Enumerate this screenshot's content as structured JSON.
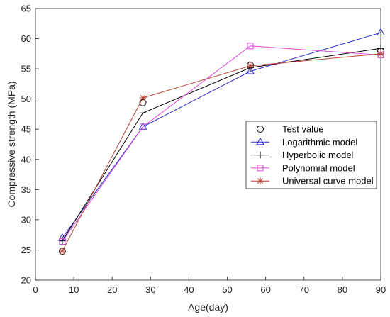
{
  "chart_data": {
    "type": "line",
    "title": "",
    "xlabel": "Age(day)",
    "ylabel": "Compressive strength (MPa)",
    "xlim": [
      0,
      90
    ],
    "ylim": [
      20,
      65
    ],
    "xticks": [
      0,
      10,
      20,
      30,
      40,
      50,
      60,
      70,
      80,
      90
    ],
    "yticks": [
      20,
      25,
      30,
      35,
      40,
      45,
      50,
      55,
      60,
      65
    ],
    "x": [
      7,
      28,
      56,
      90
    ],
    "grid": false,
    "legend_position": "right-center",
    "series": [
      {
        "name": "Test value",
        "values": [
          24.8,
          49.4,
          55.6,
          57.9
        ],
        "color": "#000000",
        "marker": "circle",
        "line": false
      },
      {
        "name": "Logarithmic model",
        "values": [
          27.0,
          45.4,
          54.6,
          61.0
        ],
        "color": "#2d2dc8",
        "marker": "triangle",
        "line": true
      },
      {
        "name": "Hyperbolic model",
        "values": [
          26.5,
          47.7,
          55.2,
          58.4
        ],
        "color": "#000000",
        "marker": "plus",
        "line": true
      },
      {
        "name": "Polynomial model",
        "values": [
          26.4,
          45.4,
          58.8,
          57.3
        ],
        "color": "#d94ad9",
        "marker": "square",
        "line": true
      },
      {
        "name": "Universal curve model",
        "values": [
          24.8,
          50.2,
          55.5,
          57.5
        ],
        "color": "#b8473a",
        "marker": "asterisk",
        "line": true
      }
    ]
  }
}
